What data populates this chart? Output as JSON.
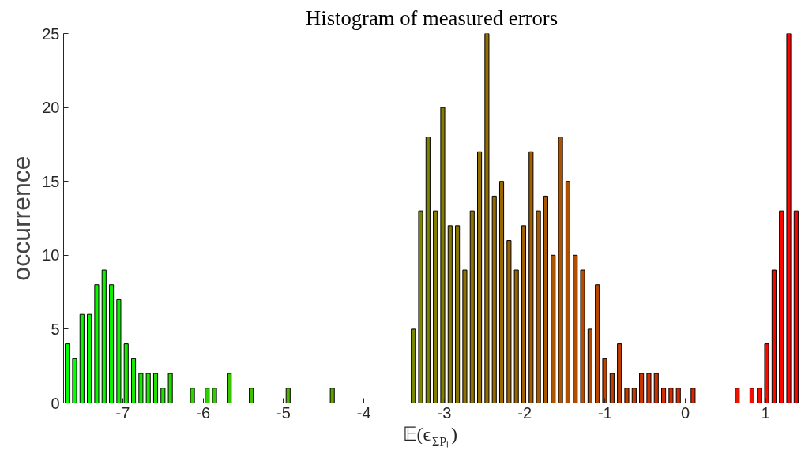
{
  "chart_data": {
    "type": "histogram",
    "title": "Histogram of measured errors",
    "xlabel": "𝔼(ϵ$_{ΣPₗ}$)",
    "ylabel": "occurrence",
    "bins": [
      -7.736,
      -7.6444,
      -7.5528,
      -7.4612,
      -7.3696,
      -7.278,
      -7.1864,
      -7.0948,
      -7.0032,
      -6.9116,
      -6.82,
      -6.7284,
      -6.6368,
      -6.5452,
      -6.4536,
      -6.362,
      -6.2704,
      -6.1788,
      -6.0872,
      -5.9956,
      -5.904,
      -5.8124,
      -5.7208,
      -5.6292,
      -5.5376,
      -5.446,
      -5.3544,
      -5.2628,
      -5.1712,
      -5.0796,
      -4.988,
      -4.8964,
      -4.8048,
      -4.7132,
      -4.6216,
      -4.53,
      -4.4384,
      -4.3468,
      -4.2552,
      -4.1636,
      -4.072,
      -3.9804,
      -3.8888,
      -3.7972,
      -3.7056,
      -3.614,
      -3.5224,
      -3.4308,
      -3.3392,
      -3.2476,
      -3.156,
      -3.0644,
      -2.9728,
      -2.8812,
      -2.7896,
      -2.698,
      -2.6064,
      -2.5148,
      -2.4232,
      -2.3316,
      -2.24,
      -2.1484,
      -2.0568,
      -1.9652,
      -1.8736,
      -1.782,
      -1.6904,
      -1.5988,
      -1.5072,
      -1.4156,
      -1.324,
      -1.2324,
      -1.1408,
      -1.0492,
      -0.9576,
      -0.866,
      -0.7744,
      -0.6828,
      -0.5912,
      -0.4996,
      -0.408,
      -0.3164,
      -0.2248,
      -0.1332,
      -0.0416,
      0.05,
      0.1416,
      0.2332,
      0.3248,
      0.4164,
      0.508,
      0.5996,
      0.6912,
      0.7828,
      0.8744,
      0.966,
      1.0576,
      1.1492,
      1.2408,
      1.3324,
      1.424
    ],
    "values": [
      4,
      3,
      6,
      6,
      8,
      9,
      8,
      7,
      4,
      3,
      2,
      2,
      2,
      1,
      2,
      0,
      0,
      1,
      0,
      1,
      1,
      0,
      2,
      0,
      0,
      1,
      0,
      0,
      0,
      0,
      1,
      0,
      0,
      0,
      0,
      0,
      1,
      0,
      0,
      0,
      0,
      0,
      0,
      0,
      0,
      0,
      0,
      5,
      13,
      18,
      13,
      20,
      12,
      12,
      9,
      13,
      17,
      25,
      14,
      15,
      11,
      9,
      12,
      17,
      13,
      14,
      10,
      18,
      15,
      10,
      9,
      5,
      8,
      3,
      2,
      4,
      1,
      1,
      2,
      2,
      2,
      1,
      1,
      1,
      0,
      1,
      0,
      0,
      0,
      0,
      0,
      1,
      0,
      1,
      1,
      4,
      9,
      13,
      25,
      13
    ],
    "colors": [
      "#00ff00",
      "#03fc00",
      "#05fa00",
      "#08f700",
      "#0af500",
      "#0df200",
      "#0ff000",
      "#12ed00",
      "#15ea00",
      "#17e800",
      "#1ae500",
      "#1ce300",
      "#1fe000",
      "#21de00",
      "#24db00",
      "#27d800",
      "#29d600",
      "#2cd300",
      "#2ed100",
      "#31ce00",
      "#34cb00",
      "#36c900",
      "#39c600",
      "#3bc400",
      "#3ec100",
      "#40bf00",
      "#43bc00",
      "#46b900",
      "#48b700",
      "#4bb400",
      "#4db200",
      "#50af00",
      "#52ad00",
      "#55aa00",
      "#58a700",
      "#5aa500",
      "#5da200",
      "#5fa000",
      "#629d00",
      "#649b00",
      "#679800",
      "#6a9500",
      "#6c9300",
      "#6f9000",
      "#718e00",
      "#748b00",
      "#768900",
      "#798600",
      "#7c8300",
      "#7e8100",
      "#817e00",
      "#837c00",
      "#867900",
      "#897600",
      "#8b7400",
      "#8e7100",
      "#906f00",
      "#936c00",
      "#956a00",
      "#986700",
      "#9b6400",
      "#9d6200",
      "#a05f00",
      "#a25d00",
      "#a55a00",
      "#a75800",
      "#aa5500",
      "#ad5200",
      "#af5000",
      "#b24d00",
      "#b44b00",
      "#b74800",
      "#b94600",
      "#bc4300",
      "#bf4000",
      "#c13e00",
      "#c43b00",
      "#c63900",
      "#c93600",
      "#cc3300",
      "#ce3100",
      "#d12e00",
      "#d32c00",
      "#d62900",
      "#d82700",
      "#db2400",
      "#de2100",
      "#e01f00",
      "#e31c00",
      "#e51a00",
      "#e81700",
      "#ea1500",
      "#ed1200",
      "#f00f00",
      "#f20d00",
      "#f50a00",
      "#f70800",
      "#fa0500",
      "#fc0300",
      "#ff0000"
    ],
    "xlim": [
      -7.736,
      1.424
    ],
    "ylim": [
      0,
      25
    ],
    "xticks": [
      -7,
      -6,
      -5,
      -4,
      -3,
      -2,
      -1,
      0,
      1
    ],
    "yticks": [
      0,
      5,
      10,
      15,
      20,
      25
    ],
    "grid": false
  }
}
